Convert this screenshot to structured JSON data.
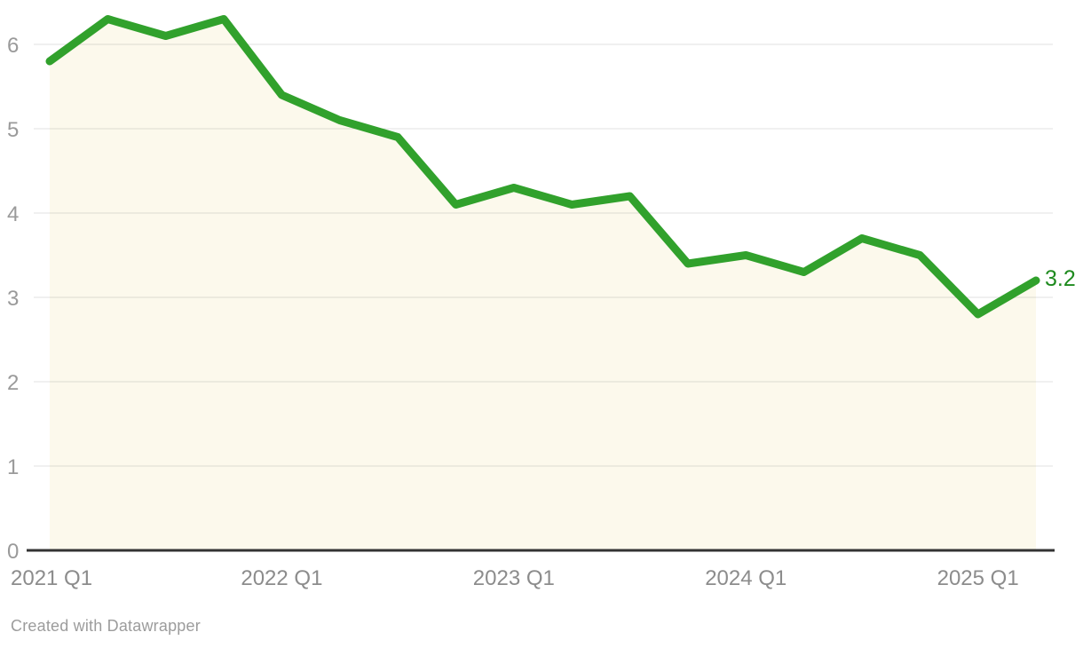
{
  "chart_data": {
    "type": "area",
    "title": "",
    "x": [
      "2021 Q1",
      "2021 Q2",
      "2021 Q3",
      "2021 Q4",
      "2022 Q1",
      "2022 Q2",
      "2022 Q3",
      "2022 Q4",
      "2023 Q1",
      "2023 Q2",
      "2023 Q3",
      "2023 Q4",
      "2024 Q1",
      "2024 Q2",
      "2024 Q3",
      "2024 Q4",
      "2025 Q1",
      "2025 Q2"
    ],
    "values": [
      5.8,
      6.3,
      6.1,
      6.3,
      5.4,
      5.1,
      4.9,
      4.1,
      4.3,
      4.1,
      4.2,
      3.4,
      3.5,
      3.3,
      3.7,
      3.5,
      2.8,
      3.2
    ],
    "end_label": "3.2",
    "y_ticks": [
      0,
      1,
      2,
      3,
      4,
      5,
      6
    ],
    "x_tick_labels": [
      "2021 Q1",
      "2022 Q1",
      "2023 Q1",
      "2024 Q1",
      "2025 Q1"
    ],
    "x_tick_indices": [
      0,
      4,
      8,
      12,
      16
    ],
    "ylim": [
      0,
      6.5
    ],
    "grid": true,
    "legend_position": "none",
    "colors": {
      "line": "#31a12c",
      "area": "#fcf9ec",
      "end_label": "#1e8a1e",
      "axis": "#333333",
      "grid": "rgba(0,0,0,0.12)",
      "y_tick_text": "#9a9a9a",
      "x_tick_text": "#8c8c8c"
    }
  },
  "footer": {
    "credit": "Created with Datawrapper"
  }
}
